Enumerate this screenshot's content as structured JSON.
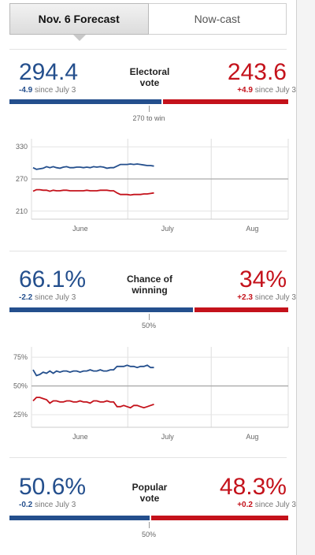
{
  "tabs": [
    {
      "label": "Nov. 6 Forecast",
      "active": true
    },
    {
      "label": "Now-cast",
      "active": false
    }
  ],
  "colors": {
    "dem": "#244f8d",
    "rep": "#c4121b"
  },
  "electoral": {
    "label_line1": "Electoral",
    "label_line2": "vote",
    "dem_value": "294.4",
    "dem_change": "-4.9",
    "rep_value": "243.6",
    "rep_change": "+4.9",
    "since": "since July 3",
    "threshold_label": "270 to win",
    "dem_share": 0.547
  },
  "winning": {
    "label_line1": "Chance of",
    "label_line2": "winning",
    "dem_value": "66.1%",
    "dem_change": "-2.2",
    "rep_value": "34%",
    "rep_change": "+2.3",
    "since": "since July 3",
    "threshold_label": "50%",
    "dem_share": 0.661
  },
  "popular": {
    "label_line1": "Popular",
    "label_line2": "vote",
    "dem_value": "50.6%",
    "dem_change": "-0.2",
    "rep_value": "48.3%",
    "rep_change": "+0.2",
    "since": "since July 3",
    "threshold_label": "50%",
    "dem_share": 0.506
  },
  "chart_data": [
    {
      "type": "line",
      "x_labels": [
        "June",
        "July",
        "Aug"
      ],
      "y_ticks": [
        {
          "value": 330,
          "label": "330"
        },
        {
          "value": 270,
          "label": "270"
        },
        {
          "value": 210,
          "label": "210"
        }
      ],
      "ylim": [
        195,
        345
      ],
      "reference_line": 270,
      "days_total": 90,
      "series": [
        {
          "color": "#244f8d",
          "values": [
            291,
            288,
            289,
            290,
            293,
            291,
            293,
            291,
            290,
            292,
            293,
            291,
            291,
            292,
            292,
            291,
            292,
            291,
            293,
            292,
            293,
            292,
            290,
            291,
            291,
            294,
            297,
            297,
            297,
            298,
            297,
            298,
            297,
            296,
            295,
            295,
            294
          ]
        },
        {
          "color": "#c4121b",
          "values": [
            247,
            250,
            250,
            249,
            249,
            247,
            249,
            248,
            248,
            249,
            249,
            248,
            248,
            248,
            248,
            248,
            249,
            248,
            248,
            248,
            249,
            249,
            249,
            248,
            248,
            244,
            241,
            241,
            241,
            240,
            241,
            241,
            241,
            242,
            242,
            243,
            244
          ]
        }
      ]
    },
    {
      "type": "line",
      "x_labels": [
        "June",
        "July",
        "Aug"
      ],
      "y_ticks": [
        {
          "value": 75,
          "label": "75%"
        },
        {
          "value": 50,
          "label": "50%"
        },
        {
          "value": 25,
          "label": "25%"
        }
      ],
      "ylim": [
        14,
        84
      ],
      "reference_line": 50,
      "days_total": 90,
      "series": [
        {
          "color": "#244f8d",
          "values": [
            64,
            59,
            60,
            62,
            61,
            63,
            61,
            63,
            62,
            63,
            63,
            62,
            63,
            63,
            62,
            63,
            63,
            64,
            63,
            63,
            64,
            63,
            63,
            64,
            64,
            67,
            67,
            67,
            68,
            67,
            67,
            66,
            67,
            67,
            68,
            66,
            66
          ]
        },
        {
          "color": "#c4121b",
          "values": [
            37,
            40,
            40,
            39,
            38,
            35,
            37,
            37,
            36,
            36,
            37,
            37,
            36,
            36,
            37,
            36,
            36,
            35,
            37,
            37,
            36,
            36,
            37,
            36,
            36,
            32,
            32,
            33,
            32,
            31,
            33,
            33,
            32,
            31,
            32,
            33,
            34
          ]
        }
      ]
    }
  ]
}
